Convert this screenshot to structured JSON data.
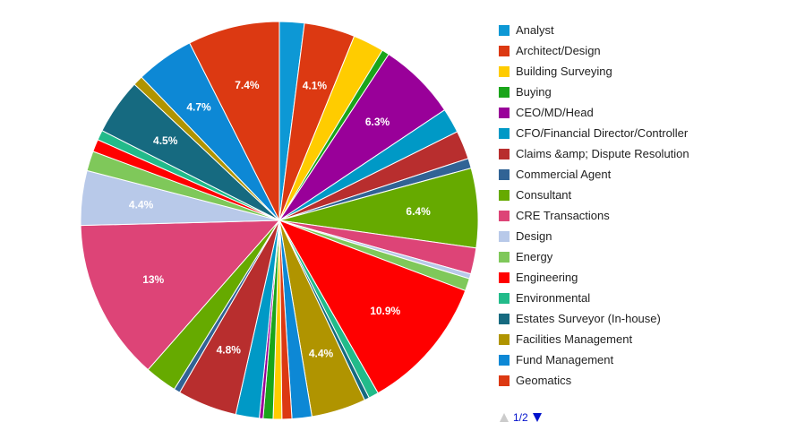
{
  "chart_data": {
    "type": "pie",
    "slices": [
      {
        "label": "Analyst",
        "value": 2.0,
        "color": "#0d98d5",
        "text": ""
      },
      {
        "label": "Architect/Design",
        "value": 4.1,
        "color": "#dc3912",
        "text": "4.1%"
      },
      {
        "label": "Building Surveying",
        "value": 2.5,
        "color": "#ffcc00",
        "text": ""
      },
      {
        "label": "Buying",
        "value": 0.6,
        "color": "#1aa51a",
        "text": ""
      },
      {
        "label": "CEO/MD/Head",
        "value": 6.3,
        "color": "#990099",
        "text": "6.3%"
      },
      {
        "label": "CFO/Financial Director/Controller",
        "value": 2.0,
        "color": "#0099c6",
        "text": ""
      },
      {
        "label": "Claims &amp; Dispute Resolution",
        "value": 2.3,
        "color": "#b82e2e",
        "text": ""
      },
      {
        "label": "Commercial Agent",
        "value": 0.8,
        "color": "#316395",
        "text": ""
      },
      {
        "label": "Consultant",
        "value": 6.4,
        "color": "#66aa00",
        "text": "6.4%"
      },
      {
        "label": "CRE Transactions",
        "value": 2.1,
        "color": "#dd4477",
        "text": ""
      },
      {
        "label": "Design",
        "value": 0.4,
        "color": "#b8c9e9",
        "text": ""
      },
      {
        "label": "Energy",
        "value": 1.0,
        "color": "#7fc85a",
        "text": ""
      },
      {
        "label": "Engineering",
        "value": 10.9,
        "color": "#ff0000",
        "text": "10.9%"
      },
      {
        "label": "Environmental",
        "value": 0.8,
        "color": "#22bb8a",
        "text": ""
      },
      {
        "label": "Estates Surveyor (In-house)",
        "value": 0.4,
        "color": "#166a80",
        "text": ""
      },
      {
        "label": "Facilities Management",
        "value": 4.4,
        "color": "#b09400",
        "text": "4.4%"
      },
      {
        "label": "Fund Management",
        "value": 1.6,
        "color": "#0d88d5",
        "text": ""
      },
      {
        "label": "Geomatics",
        "value": 0.8,
        "color": "#dc3912",
        "text": ""
      },
      {
        "label": "",
        "value": 0.7,
        "color": "#ffcc00",
        "text": ""
      },
      {
        "label": "",
        "value": 0.8,
        "color": "#1aa51a",
        "text": ""
      },
      {
        "label": "",
        "value": 0.3,
        "color": "#990099",
        "text": ""
      },
      {
        "label": "",
        "value": 1.9,
        "color": "#0099c6",
        "text": ""
      },
      {
        "label": "",
        "value": 4.8,
        "color": "#b82e2e",
        "text": "4.8%"
      },
      {
        "label": "",
        "value": 0.5,
        "color": "#316395",
        "text": ""
      },
      {
        "label": "",
        "value": 2.6,
        "color": "#66aa00",
        "text": ""
      },
      {
        "label": "",
        "value": 13.0,
        "color": "#dd4477",
        "text": "13%"
      },
      {
        "label": "",
        "value": 4.4,
        "color": "#b8c9e9",
        "text": "4.4%"
      },
      {
        "label": "",
        "value": 1.6,
        "color": "#7fc85a",
        "text": ""
      },
      {
        "label": "",
        "value": 1.0,
        "color": "#ff0000",
        "text": ""
      },
      {
        "label": "",
        "value": 0.8,
        "color": "#22bb8a",
        "text": ""
      },
      {
        "label": "",
        "value": 4.5,
        "color": "#166a80",
        "text": "4.5%"
      },
      {
        "label": "",
        "value": 0.8,
        "color": "#b09400",
        "text": ""
      },
      {
        "label": "",
        "value": 4.7,
        "color": "#0d88d5",
        "text": "4.7%"
      },
      {
        "label": "",
        "value": 7.4,
        "color": "#dc3912",
        "text": "7.4%"
      }
    ],
    "legend_position": "right"
  },
  "legend": {
    "items": [
      {
        "label": "Analyst",
        "color": "#0d98d5"
      },
      {
        "label": "Architect/Design",
        "color": "#dc3912"
      },
      {
        "label": "Building Surveying",
        "color": "#ffcc00"
      },
      {
        "label": "Buying",
        "color": "#1aa51a"
      },
      {
        "label": "CEO/MD/Head",
        "color": "#990099"
      },
      {
        "label": "CFO/Financial Director/Controller",
        "color": "#0099c6"
      },
      {
        "label": "Claims &amp; Dispute Resolution",
        "color": "#b82e2e"
      },
      {
        "label": "Commercial Agent",
        "color": "#316395"
      },
      {
        "label": "Consultant",
        "color": "#66aa00"
      },
      {
        "label": "CRE Transactions",
        "color": "#dd4477"
      },
      {
        "label": "Design",
        "color": "#b8c9e9"
      },
      {
        "label": "Energy",
        "color": "#7fc85a"
      },
      {
        "label": "Engineering",
        "color": "#ff0000"
      },
      {
        "label": "Environmental",
        "color": "#22bb8a"
      },
      {
        "label": "Estates Surveyor (In-house)",
        "color": "#166a80"
      },
      {
        "label": "Facilities Management",
        "color": "#b09400"
      },
      {
        "label": "Fund Management",
        "color": "#0d88d5"
      },
      {
        "label": "Geomatics",
        "color": "#dc3912"
      }
    ],
    "page_text": "1/2"
  }
}
